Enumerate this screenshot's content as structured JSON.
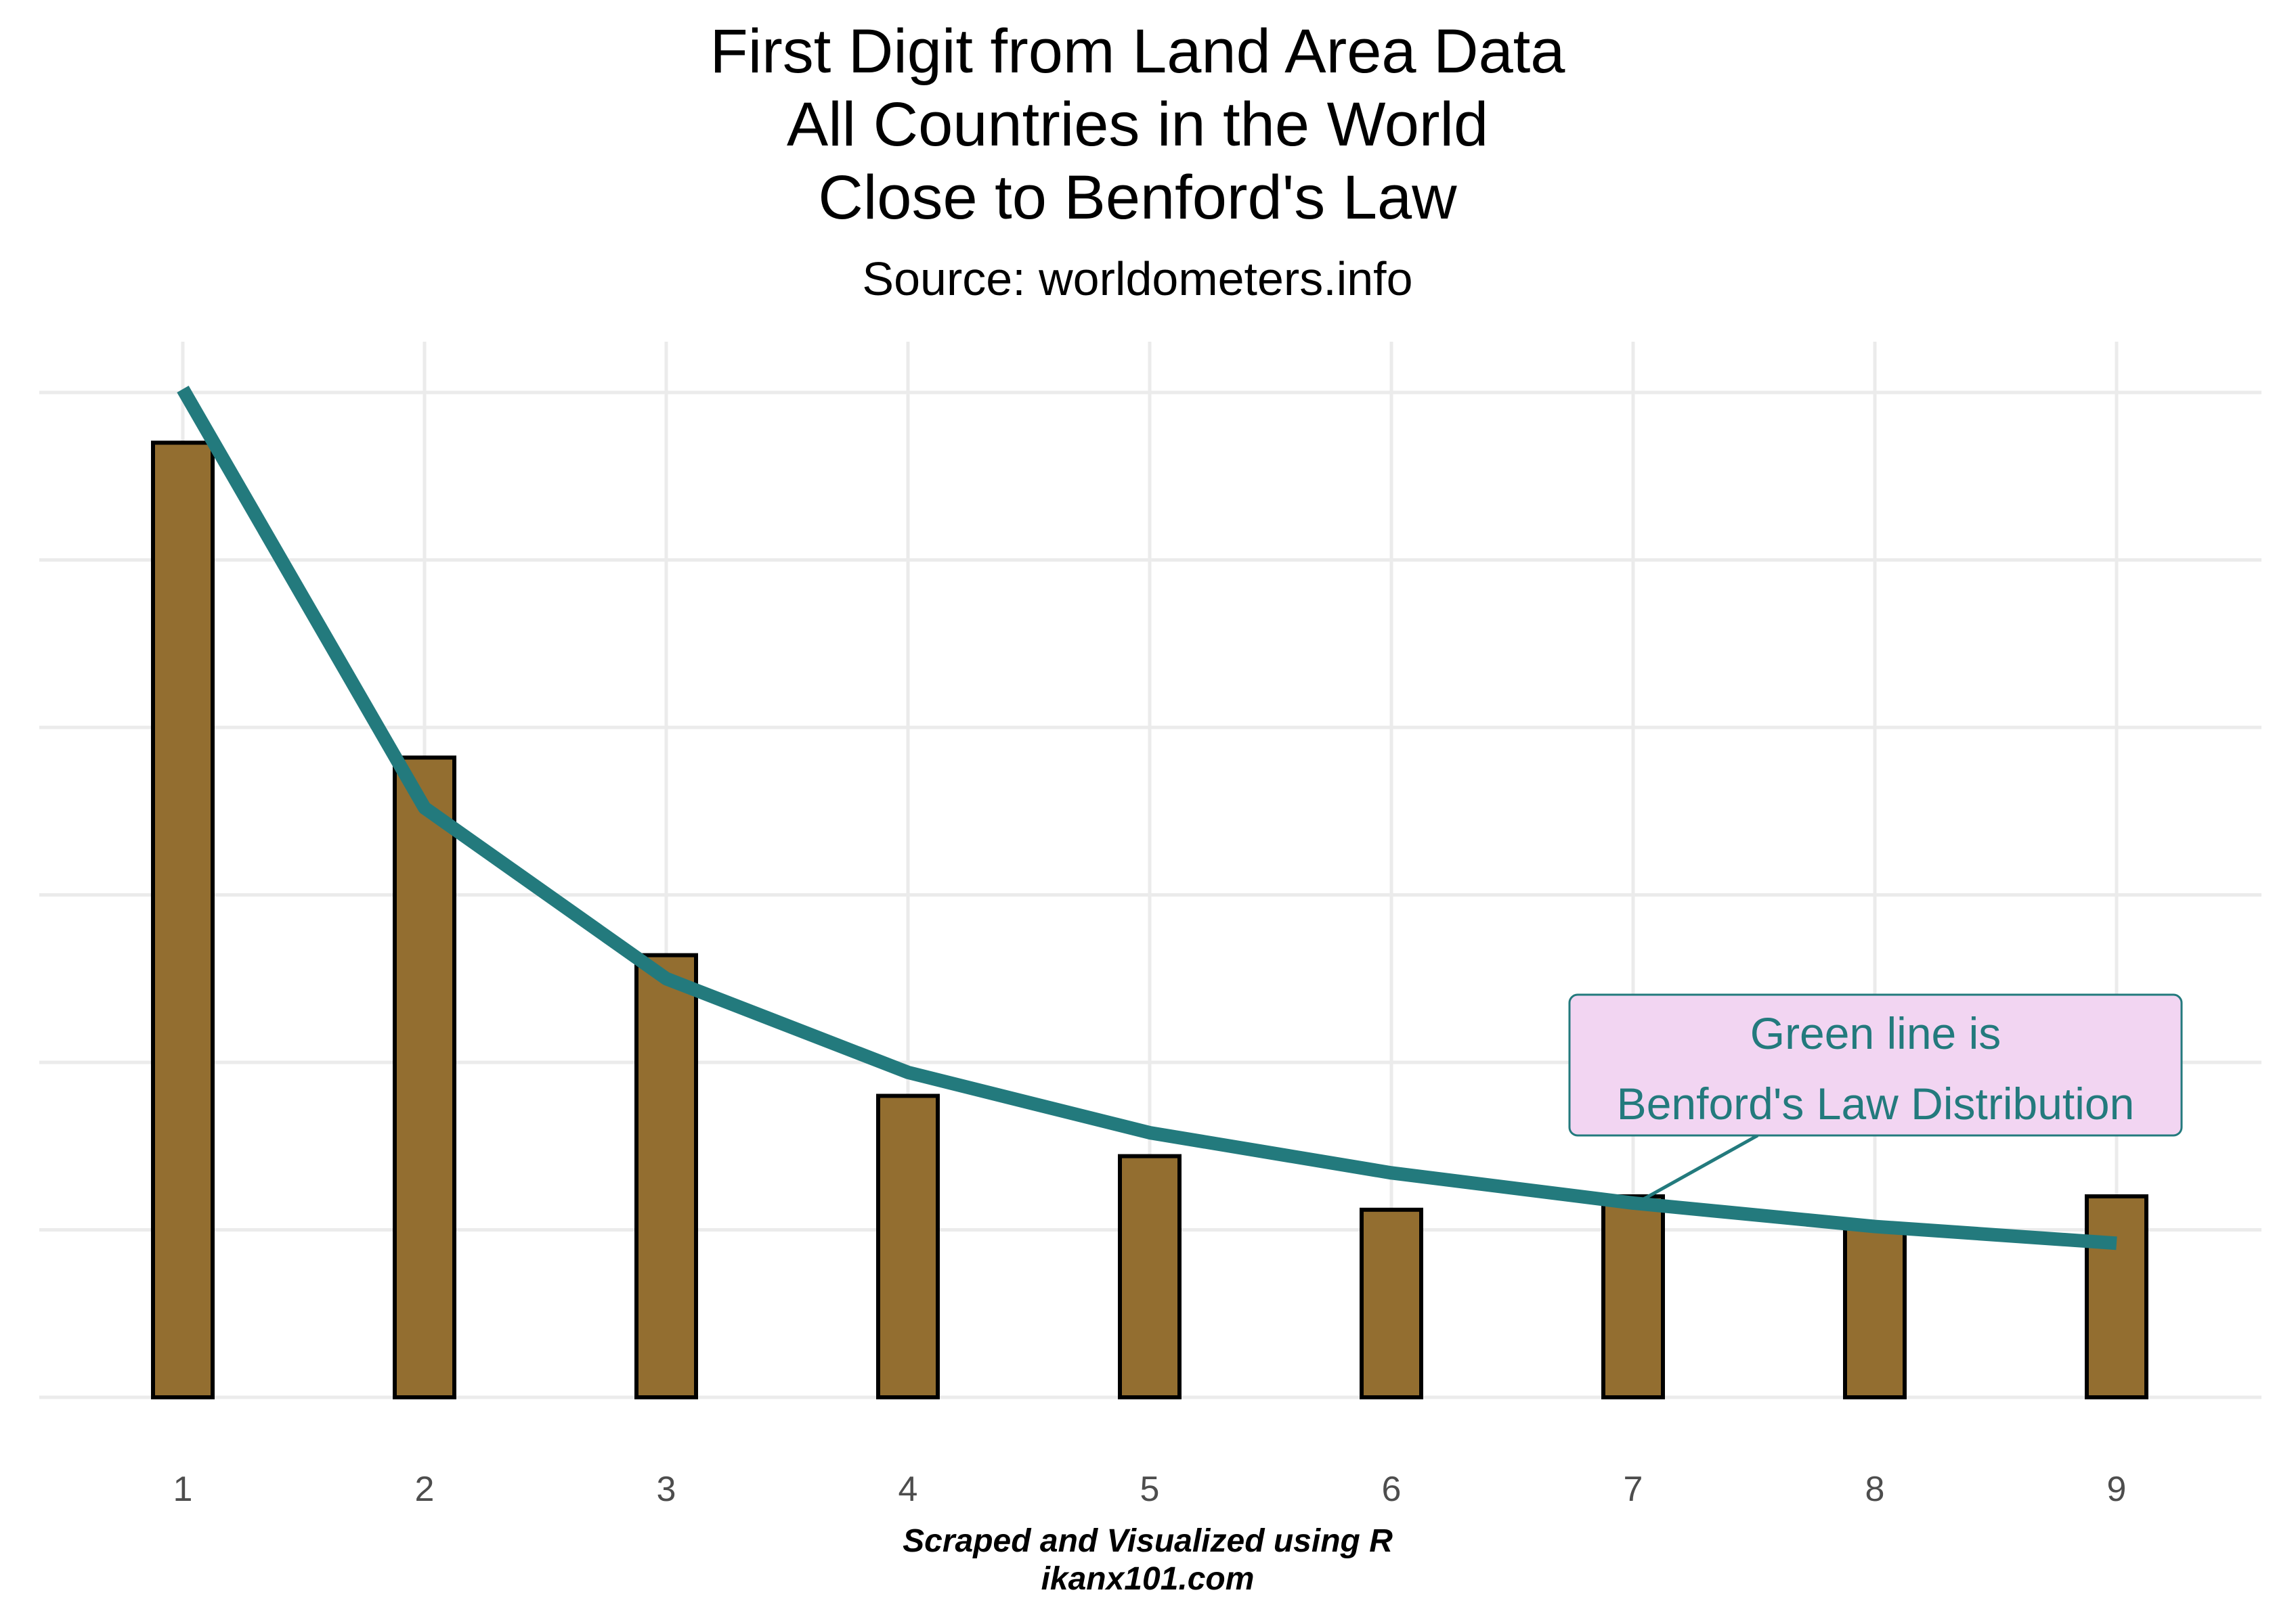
{
  "chart_data": {
    "type": "bar",
    "title_lines": [
      "First Digit from Land Area Data",
      "All Countries in the World",
      "Close to Benford's Law"
    ],
    "subtitle": "Source: worldometers.info",
    "caption_lines": [
      "Scraped and Visualized using R",
      "ikanx101.com"
    ],
    "categories": [
      "1",
      "2",
      "3",
      "4",
      "5",
      "6",
      "7",
      "8",
      "9"
    ],
    "series": [
      {
        "type": "bar",
        "values": [
          0.285,
          0.191,
          0.132,
          0.09,
          0.072,
          0.056,
          0.06,
          0.051,
          0.06
        ]
      },
      {
        "type": "line",
        "values": [
          0.301,
          0.176,
          0.125,
          0.097,
          0.079,
          0.067,
          0.058,
          0.051,
          0.046
        ]
      }
    ],
    "ylim": [
      0,
      0.3
    ],
    "grid": true,
    "annotation": {
      "lines": [
        "Green line is",
        "Benford's Law Distribution"
      ],
      "points_to_category": "7"
    },
    "colors": {
      "bar_fill": "#936E30",
      "bar_stroke": "#000000",
      "line": "#237A7D",
      "annotation_fill": "#F2D5F2",
      "annotation_text": "#237A7D",
      "grid": "#EBEBEB",
      "tick_text": "#4D4D4D"
    }
  }
}
